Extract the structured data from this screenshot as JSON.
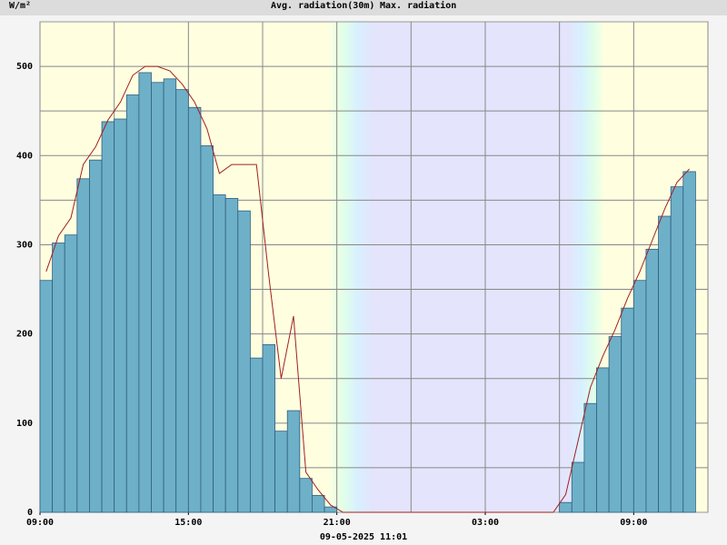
{
  "chart_data": {
    "type": "bar",
    "ylabel": "W/m²",
    "footer": "09-05-2025 11:01",
    "x": [
      0,
      0.5,
      1,
      1.5,
      2,
      2.5,
      3,
      3.5,
      4,
      4.5,
      5,
      5.5,
      6,
      6.5,
      7,
      7.5,
      8,
      8.5,
      9,
      9.5,
      10,
      10.5,
      11,
      11.5,
      12,
      12.5,
      13,
      13.5,
      14,
      14.5,
      15,
      15.5,
      16,
      16.5,
      17,
      17.5,
      18,
      18.5,
      19,
      19.5,
      20,
      20.5,
      21,
      21.5,
      22,
      22.5,
      23,
      23.5,
      24,
      24.5,
      25,
      25.5,
      26
    ],
    "series": [
      {
        "name": "Avg. radiation(30m)",
        "color": "#6eb0c8",
        "text_color": "#4a7fc0",
        "values": [
          260,
          302,
          311,
          374,
          395,
          438,
          441,
          468,
          493,
          482,
          486,
          474,
          454,
          411,
          356,
          352,
          338,
          173,
          188,
          91,
          114,
          38,
          19,
          6,
          0,
          0,
          0,
          0,
          0,
          0,
          0,
          0,
          0,
          0,
          0,
          0,
          0,
          0,
          0,
          0,
          0,
          0,
          11,
          56,
          122,
          162,
          197,
          229,
          260,
          295,
          332,
          365,
          382
        ]
      },
      {
        "name": "Max. radiation",
        "color": "#a02020",
        "text_color": "#b02020",
        "values": [
          270,
          310,
          330,
          390,
          410,
          440,
          460,
          490,
          500,
          500,
          495,
          480,
          460,
          430,
          380,
          390,
          390,
          390,
          265,
          150,
          220,
          45,
          25,
          8,
          0,
          0,
          0,
          0,
          0,
          0,
          0,
          0,
          0,
          0,
          0,
          0,
          0,
          0,
          0,
          0,
          0,
          0,
          20,
          80,
          140,
          175,
          205,
          240,
          270,
          305,
          340,
          370,
          385
        ]
      }
    ],
    "xlim": [
      0,
      27
    ],
    "xticks": [
      {
        "value": 0,
        "label": "09:00"
      },
      {
        "value": 6,
        "label": "15:00"
      },
      {
        "value": 12,
        "label": "21:00"
      },
      {
        "value": 18,
        "label": "03:00"
      },
      {
        "value": 24,
        "label": "09:00"
      }
    ],
    "xgrid": [
      0,
      3,
      6,
      9,
      12,
      15,
      18,
      21,
      24,
      27
    ],
    "ylim": [
      0,
      550
    ],
    "yticks": [
      0,
      100,
      200,
      300,
      400,
      500
    ],
    "ygrid": [
      50,
      100,
      150,
      200,
      250,
      300,
      350,
      400,
      450,
      500
    ],
    "grid": true
  }
}
